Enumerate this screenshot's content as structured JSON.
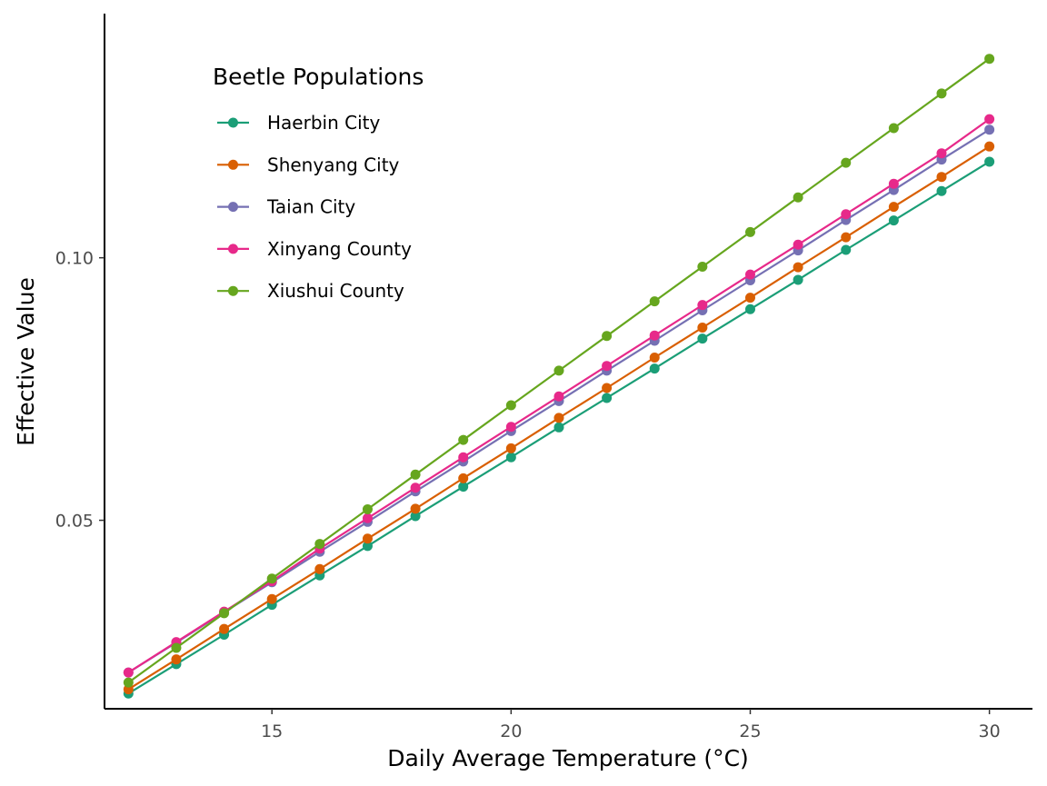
{
  "chart_data": {
    "type": "line",
    "xlabel": "Daily Average Temperature (°C)",
    "ylabel": "Effective Value",
    "xlim": [
      11.5,
      30.9
    ],
    "ylim": [
      0.0141,
      0.1465
    ],
    "xticks": [
      15,
      20,
      25,
      30
    ],
    "xtick_labels": [
      "15",
      "20",
      "25",
      "30"
    ],
    "yticks": [
      0.05,
      0.1
    ],
    "ytick_labels": [
      "0.05",
      "0.10"
    ],
    "grid": false,
    "legend": {
      "title": "Beetle Populations",
      "placement": "top-left"
    },
    "x": [
      12,
      13,
      14,
      15,
      16,
      17,
      18,
      19,
      20,
      21,
      22,
      23,
      24,
      25,
      26,
      27,
      28,
      29,
      30
    ],
    "series": [
      {
        "name": "Haerbin City",
        "color": "#1b9e77",
        "values": [
          0.017,
          0.0226,
          0.0282,
          0.0339,
          0.0395,
          0.0451,
          0.0508,
          0.0564,
          0.062,
          0.0677,
          0.0733,
          0.0789,
          0.0846,
          0.0902,
          0.0958,
          0.1015,
          0.1071,
          0.1127,
          0.1183
        ]
      },
      {
        "name": "Shenyang City",
        "color": "#d95f02",
        "values": [
          0.0178,
          0.0235,
          0.0293,
          0.035,
          0.0407,
          0.0465,
          0.0522,
          0.058,
          0.0637,
          0.0695,
          0.0752,
          0.081,
          0.0867,
          0.0924,
          0.0982,
          0.1039,
          0.1097,
          0.1154,
          0.1212
        ]
      },
      {
        "name": "Taian City",
        "color": "#7570b3",
        "values": [
          0.021,
          0.0267,
          0.0325,
          0.0382,
          0.044,
          0.0497,
          0.0555,
          0.0612,
          0.067,
          0.0727,
          0.0785,
          0.0842,
          0.09,
          0.0957,
          0.1014,
          0.1072,
          0.1129,
          0.1187,
          0.1244
        ]
      },
      {
        "name": "Xinyang County",
        "color": "#e7298a",
        "values": [
          0.021,
          0.0268,
          0.0326,
          0.0384,
          0.0446,
          0.0504,
          0.0562,
          0.062,
          0.0678,
          0.0736,
          0.0794,
          0.0852,
          0.091,
          0.0968,
          0.1025,
          0.1083,
          0.1141,
          0.1199,
          0.1264
        ]
      },
      {
        "name": "Xiushui County",
        "color": "#66a61e",
        "values": [
          0.0191,
          0.0257,
          0.0323,
          0.0389,
          0.0455,
          0.0521,
          0.0587,
          0.0653,
          0.0719,
          0.0785,
          0.0851,
          0.0917,
          0.0983,
          0.1049,
          0.1115,
          0.1181,
          0.1247,
          0.1313,
          0.1379
        ]
      }
    ]
  }
}
